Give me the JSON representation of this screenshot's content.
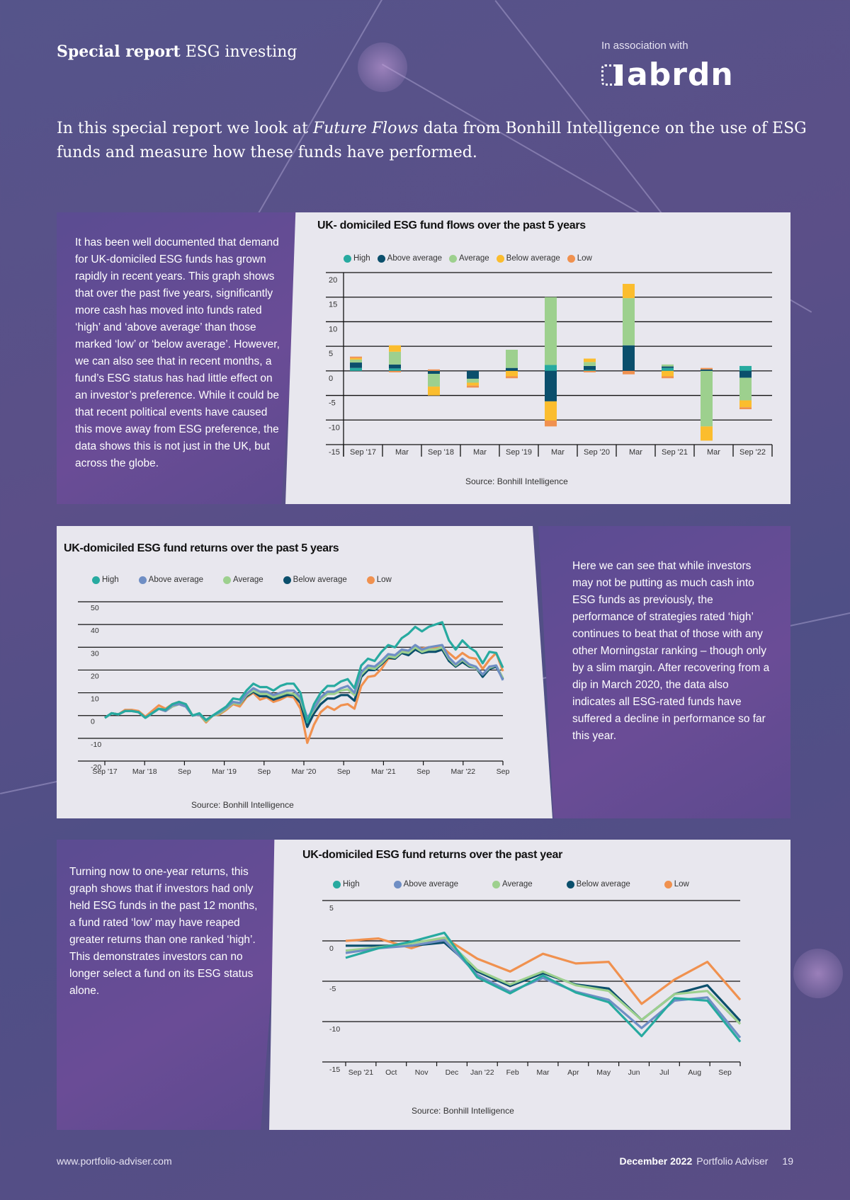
{
  "header": {
    "title_bold": "Special report",
    "title_rest": "ESG investing",
    "association_label": "In association with",
    "partner_logo": "abrdn"
  },
  "intro": {
    "before": "In this special report we look at ",
    "italic": "Future Flows",
    "after": " data from Bonhill Intelligence on the use of ESG funds and measure how these funds have performed."
  },
  "text_blocks": {
    "flows": "It has been well documented that demand for UK-domiciled ESG funds has grown rapidly in recent years. This graph shows that over the past five years, significantly more cash has moved into funds rated ‘high’ and ‘above average’ than those marked ‘low’ or ‘below average’. However, we can also see that in recent months, a fund’s ESG status has had little effect on an investor’s preference. While it could be that recent political events have caused this move away from ESG preference, the data shows this is not just in the UK, but across the globe.",
    "returns5y": "Here we can see that while investors may not be putting as much cash into ESG funds as previously, the performance of strategies rated ‘high’ continues to beat that of those with any other Morningstar ranking – though only by a slim margin. After recovering from a dip in March 2020, the data also indicates all ESG-rated funds have suffered a decline in performance so far this year.",
    "returns1y": "Turning now to one-year returns, this graph shows that if investors had only held ESG funds in the past 12 months, a fund rated ‘low’ may have reaped greater returns than one ranked ‘high’. This demonstrates investors can no longer select a fund on its ESG status alone."
  },
  "footer": {
    "website": "www.portfolio-adviser.com",
    "issue_bold": "December 2022",
    "publication": "Portfolio Adviser",
    "page_number": "19"
  },
  "chart_data": [
    {
      "type": "bar",
      "stacked": true,
      "title": "UK- domiciled ESG fund flows over the past 5 years",
      "source": "Source: Bonhill Intelligence",
      "xlabel": "",
      "ylabel": "",
      "ylim": [
        -15,
        20
      ],
      "yticks": [
        20,
        15,
        10,
        5,
        0,
        -5,
        -10,
        -15
      ],
      "legend_position": "top",
      "categories": [
        "Sep '17",
        "Mar",
        "Sep '18",
        "Mar",
        "Sep '19",
        "Mar",
        "Sep '20",
        "Mar",
        "Sep '21",
        "Mar",
        "Sep '22"
      ],
      "series": [
        {
          "name": "High",
          "color": "#27aaa0",
          "values": [
            0.6,
            0.5,
            0.0,
            0.0,
            0.0,
            1.2,
            0.2,
            0.0,
            0.6,
            0.0,
            1.0
          ]
        },
        {
          "name": "Above average",
          "color": "#0b4f6c",
          "values": [
            1.1,
            0.8,
            -0.6,
            -1.6,
            0.6,
            -6.2,
            0.8,
            5.2,
            0.3,
            0.3,
            -1.4
          ]
        },
        {
          "name": "Average",
          "color": "#9dd08e",
          "values": [
            0.6,
            2.6,
            -2.6,
            -0.8,
            3.7,
            13.8,
            0.8,
            9.6,
            0.4,
            -11.3,
            -4.6
          ]
        },
        {
          "name": "Below average",
          "color": "#fbbd2e",
          "values": [
            0.3,
            1.3,
            -1.8,
            -0.6,
            -1.1,
            -3.9,
            0.7,
            2.9,
            -1.1,
            -2.9,
            -1.4
          ]
        },
        {
          "name": "Low",
          "color": "#f0914f",
          "values": [
            0.3,
            -0.3,
            0.3,
            -0.4,
            -0.4,
            -1.2,
            -0.3,
            -0.7,
            -0.4,
            0.3,
            -0.4
          ]
        }
      ]
    },
    {
      "type": "line",
      "title": "UK-domiciled ESG fund returns over the past 5 years",
      "source": "Source: Bonhill Intelligence",
      "xlabel": "",
      "ylabel": "",
      "ylim": [
        -20,
        50
      ],
      "yticks": [
        50,
        40,
        30,
        20,
        10,
        0,
        -10,
        -20
      ],
      "legend_position": "top",
      "xticks": [
        "Sep '17",
        "Mar '18",
        "Sep",
        "Mar '19",
        "Sep",
        "Mar '20",
        "Sep",
        "Mar '21",
        "Sep",
        "Mar '22",
        "Sep"
      ],
      "points_per_tick": 6,
      "series": [
        {
          "name": "High",
          "color": "#27aaa0",
          "values": [
            -1,
            1,
            0.5,
            2,
            2,
            1.5,
            -1,
            1,
            3,
            2.5,
            5,
            6,
            5,
            0,
            1,
            -2,
            0,
            2,
            4,
            7.5,
            7,
            11,
            14,
            12.5,
            12.5,
            11,
            13,
            14,
            14,
            10,
            -3,
            5,
            10,
            13,
            13,
            15,
            16,
            12,
            22,
            25,
            24,
            28,
            31,
            30,
            34,
            36,
            39,
            37,
            39,
            40,
            41,
            33,
            29,
            33,
            30,
            28,
            23,
            28,
            27.5,
            21
          ]
        },
        {
          "name": "Above average",
          "color": "#6f8ec4",
          "values": [
            -1,
            1,
            0.5,
            2,
            2,
            1.5,
            -1,
            1,
            3,
            2,
            4.5,
            5,
            4,
            0,
            0.5,
            -2,
            0,
            1.5,
            3.5,
            6,
            5.5,
            9.5,
            12,
            10.5,
            10.5,
            9,
            10,
            11,
            11,
            8,
            -1,
            3,
            8,
            10.5,
            10.5,
            12,
            13,
            10,
            19,
            22,
            21.5,
            24,
            27,
            26.5,
            29,
            28.5,
            31,
            29,
            30,
            30.5,
            31,
            25.5,
            22.5,
            25,
            22.5,
            21.5,
            18,
            21.5,
            22,
            15.5
          ]
        },
        {
          "name": "Average",
          "color": "#9dd08e",
          "values": [
            -1,
            1,
            0.5,
            2,
            2,
            1.5,
            -1,
            1,
            3,
            2,
            4,
            5,
            4,
            0,
            0.5,
            -2.5,
            0,
            1,
            3,
            5.5,
            5,
            9,
            11,
            9.5,
            9.5,
            8,
            9,
            10,
            9.5,
            7,
            -2,
            2.5,
            7,
            9.5,
            9.5,
            11,
            11.5,
            9,
            18,
            21,
            20.5,
            23,
            26,
            25.5,
            28,
            27.5,
            30,
            28,
            29,
            29,
            30,
            25,
            22,
            24.5,
            22,
            21,
            18,
            21,
            22,
            16.5
          ]
        },
        {
          "name": "Below average",
          "color": "#0b4f6c",
          "values": [
            -1,
            1,
            0.5,
            2,
            2,
            1.5,
            -1,
            1,
            3,
            2,
            4,
            5,
            4,
            0,
            0.5,
            -2.5,
            0,
            1,
            3,
            5.5,
            5,
            8.5,
            10.5,
            8.5,
            8.5,
            7,
            8,
            9,
            9,
            5.5,
            -5,
            1,
            5,
            7.5,
            7.5,
            9,
            9,
            6.5,
            17,
            20,
            20,
            22.5,
            25.5,
            25,
            27.5,
            26.5,
            29,
            27.5,
            28,
            28,
            29,
            24,
            21.5,
            23.5,
            21.5,
            21,
            17,
            20.5,
            21.5,
            16
          ]
        },
        {
          "name": "Low",
          "color": "#f0914f",
          "values": [
            -1,
            1,
            0.5,
            2.5,
            2.5,
            2,
            -0.5,
            2,
            4.5,
            3,
            5,
            6,
            5,
            0,
            0.5,
            -3,
            0,
            0.5,
            2.5,
            5,
            4,
            8,
            10,
            7,
            8,
            6,
            7,
            8.5,
            8,
            3,
            -12,
            -4,
            1.5,
            4,
            2.5,
            4.5,
            5,
            3,
            13,
            17,
            17.5,
            20.5,
            25,
            25,
            28,
            28,
            30,
            29.5,
            30,
            30,
            30,
            27.5,
            25,
            27.5,
            25.5,
            25,
            20.5,
            24.5,
            27.5,
            19.5
          ]
        }
      ]
    },
    {
      "type": "line",
      "title": "UK-domiciled ESG fund returns over the past year",
      "source": "Source: Bonhill Intelligence",
      "xlabel": "",
      "ylabel": "",
      "ylim": [
        -15,
        5
      ],
      "yticks": [
        5,
        0,
        -5,
        -10,
        -15
      ],
      "legend_position": "top",
      "xticks": [
        "Sep '21",
        "Oct",
        "Nov",
        "Dec",
        "Jan '22",
        "Feb",
        "Mar",
        "Apr",
        "May",
        "Jun",
        "Jul",
        "Aug",
        "Sep"
      ],
      "series": [
        {
          "name": "High",
          "color": "#27aaa0",
          "values": [
            -2.1,
            -0.9,
            -0.1,
            1.0,
            -4.5,
            -6.5,
            -4.3,
            -6.4,
            -7.6,
            -11.8,
            -7.1,
            -7.4,
            -12.5
          ]
        },
        {
          "name": "Above average",
          "color": "#6f8ec4",
          "values": [
            -1.5,
            -0.9,
            -0.6,
            0.1,
            -4.2,
            -6.3,
            -4.6,
            -6.3,
            -7.3,
            -10.8,
            -7.4,
            -7.0,
            -12.0
          ]
        },
        {
          "name": "Average",
          "color": "#9dd08e",
          "values": [
            -1.2,
            -0.8,
            -0.3,
            0.4,
            -3.6,
            -5.4,
            -3.8,
            -5.5,
            -6.2,
            -9.8,
            -6.6,
            -6.2,
            -10.3
          ]
        },
        {
          "name": "Below average",
          "color": "#0b4f6c",
          "values": [
            -0.6,
            -0.6,
            -0.6,
            -0.2,
            -3.8,
            -5.6,
            -4.0,
            -5.4,
            -5.9,
            -9.8,
            -6.6,
            -5.5,
            -9.9
          ]
        },
        {
          "name": "Low",
          "color": "#f0914f",
          "values": [
            0.0,
            0.3,
            -0.9,
            0.4,
            -2.2,
            -3.8,
            -1.6,
            -2.8,
            -2.6,
            -7.8,
            -4.8,
            -2.6,
            -7.3
          ]
        }
      ]
    }
  ]
}
